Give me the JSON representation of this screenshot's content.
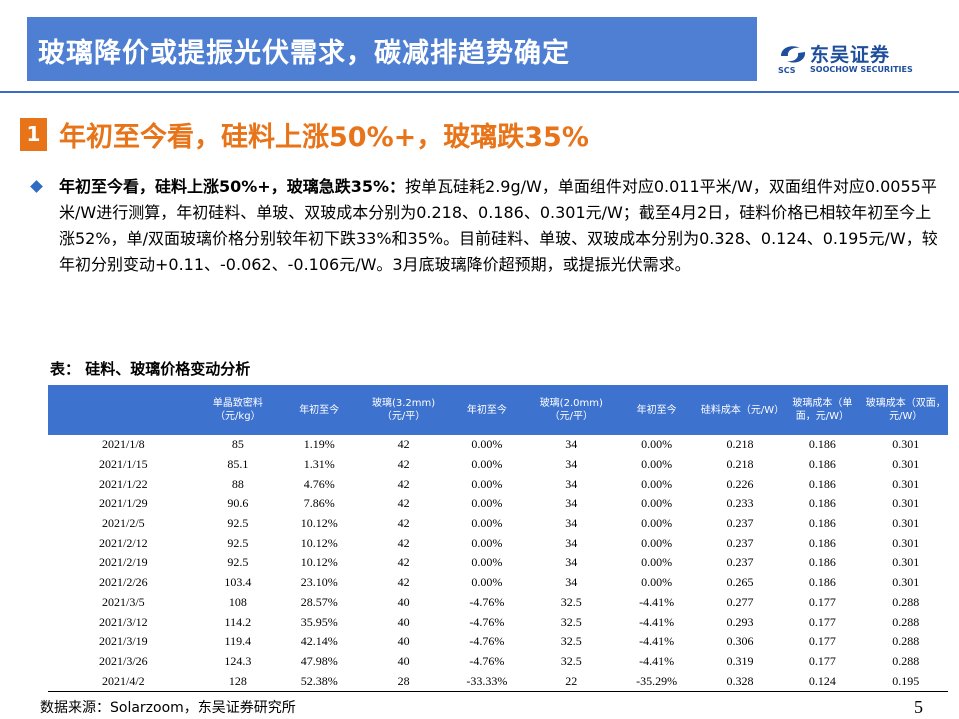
{
  "header": {
    "title": "玻璃降价或提振光伏需求，碳减排趋势确定",
    "logo_cn": "东吴证券",
    "logo_en": "SOOCHOW SECURITIES",
    "logo_abbr": "SCS"
  },
  "section": {
    "number": "1",
    "title": "年初至今看，硅料上涨50%+，玻璃跌35%"
  },
  "paragraph": {
    "lead": "年初至今看，硅料上涨50%+，玻璃急跌35%：",
    "body": "按单瓦硅耗2.9g/W，单面组件对应0.011平米/W，双面组件对应0.0055平米/W进行测算，年初硅料、单玻、双玻成本分别为0.218、0.186、0.301元/W；截至4月2日，硅料价格已相较年初至今上涨52%，单/双面玻璃价格分别较年初下跌33%和35%。目前硅料、单玻、双玻成本分别为0.328、0.124、0.195元/W，较年初分别变动+0.11、-0.062、-0.106元/W。3月底玻璃降价超预期，或提振光伏需求。"
  },
  "table": {
    "caption": "表： 硅料、玻璃价格变动分析",
    "headers": [
      "",
      "单晶致密料（元/kg）",
      "年初至今",
      "玻璃(3.2mm)（元/平）",
      "年初至今",
      "玻璃(2.0mm)（元/平）",
      "年初至今",
      "硅料成本（元/W）",
      "玻璃成本（单面，元/W）",
      "玻璃成本（双面，元/W）"
    ],
    "rows": [
      [
        "2021/1/8",
        "85",
        "1.19%",
        "42",
        "0.00%",
        "34",
        "0.00%",
        "0.218",
        "0.186",
        "0.301"
      ],
      [
        "2021/1/15",
        "85.1",
        "1.31%",
        "42",
        "0.00%",
        "34",
        "0.00%",
        "0.218",
        "0.186",
        "0.301"
      ],
      [
        "2021/1/22",
        "88",
        "4.76%",
        "42",
        "0.00%",
        "34",
        "0.00%",
        "0.226",
        "0.186",
        "0.301"
      ],
      [
        "2021/1/29",
        "90.6",
        "7.86%",
        "42",
        "0.00%",
        "34",
        "0.00%",
        "0.233",
        "0.186",
        "0.301"
      ],
      [
        "2021/2/5",
        "92.5",
        "10.12%",
        "42",
        "0.00%",
        "34",
        "0.00%",
        "0.237",
        "0.186",
        "0.301"
      ],
      [
        "2021/2/12",
        "92.5",
        "10.12%",
        "42",
        "0.00%",
        "34",
        "0.00%",
        "0.237",
        "0.186",
        "0.301"
      ],
      [
        "2021/2/19",
        "92.5",
        "10.12%",
        "42",
        "0.00%",
        "34",
        "0.00%",
        "0.237",
        "0.186",
        "0.301"
      ],
      [
        "2021/2/26",
        "103.4",
        "23.10%",
        "42",
        "0.00%",
        "34",
        "0.00%",
        "0.265",
        "0.186",
        "0.301"
      ],
      [
        "2021/3/5",
        "108",
        "28.57%",
        "40",
        "-4.76%",
        "32.5",
        "-4.41%",
        "0.277",
        "0.177",
        "0.288"
      ],
      [
        "2021/3/12",
        "114.2",
        "35.95%",
        "40",
        "-4.76%",
        "32.5",
        "-4.41%",
        "0.293",
        "0.177",
        "0.288"
      ],
      [
        "2021/3/19",
        "119.4",
        "42.14%",
        "40",
        "-4.76%",
        "32.5",
        "-4.41%",
        "0.306",
        "0.177",
        "0.288"
      ],
      [
        "2021/3/26",
        "124.3",
        "47.98%",
        "40",
        "-4.76%",
        "32.5",
        "-4.41%",
        "0.319",
        "0.177",
        "0.288"
      ],
      [
        "2021/4/2",
        "128",
        "52.38%",
        "28",
        "-33.33%",
        "22",
        "-35.29%",
        "0.328",
        "0.124",
        "0.195"
      ]
    ]
  },
  "footer": {
    "source": "数据来源：Solarzoom，东吴证券研究所",
    "page": "5"
  },
  "colors": {
    "title_bar": "#4f7fd3",
    "accent_orange": "#e8741a",
    "table_header": "#3d72cf",
    "logo_blue": "#1f4e9c"
  }
}
